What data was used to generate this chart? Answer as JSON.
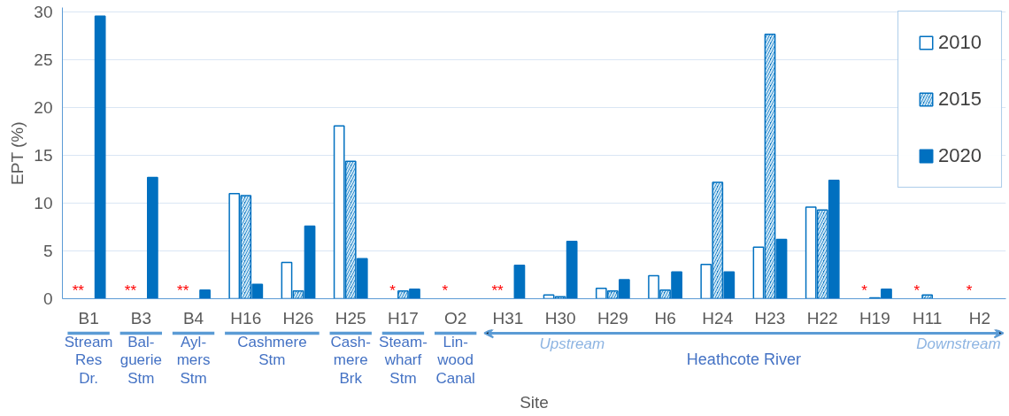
{
  "chart_data": {
    "type": "bar",
    "xlabel": "Site",
    "ylabel": "EPT (%)",
    "categories": [
      "B1",
      "B3",
      "B4",
      "H16",
      "H26",
      "H25",
      "H17",
      "O2",
      "H31",
      "H30",
      "H29",
      "H6",
      "H24",
      "H23",
      "H22",
      "H19",
      "H11",
      "H2"
    ],
    "series": [
      {
        "name": "2010",
        "color": "#0070c0",
        "values": [
          null,
          null,
          null,
          11.0,
          3.8,
          18.1,
          null,
          null,
          null,
          0.4,
          1.1,
          2.4,
          3.6,
          5.4,
          9.6,
          null,
          null,
          null
        ]
      },
      {
        "name": "2015",
        "color": "#0070c0",
        "values": [
          null,
          null,
          null,
          10.8,
          0.8,
          14.4,
          0.8,
          null,
          null,
          0.2,
          0.8,
          0.9,
          12.2,
          27.7,
          9.3,
          0.1,
          0.4,
          null
        ]
      },
      {
        "name": "2020",
        "color": "#0070c0",
        "values": [
          29.6,
          12.7,
          0.9,
          1.5,
          7.6,
          4.2,
          1.0,
          null,
          3.5,
          6.0,
          2.0,
          2.8,
          2.8,
          6.2,
          12.4,
          1.0,
          null,
          null
        ]
      }
    ],
    "ylim": [
      0,
      30.5
    ],
    "yticks": [
      0,
      5,
      10,
      15,
      20,
      25,
      30
    ],
    "grid": "y",
    "legend": "top right",
    "annotations": [
      "Stream\nRes\nDr.",
      "Bal-\nguerie\nStm",
      "Ayl-\nmers\nStm",
      "Cashmere\nStm",
      "Cash-\nmere\nBrk",
      "Steam-\nwharf\nStm",
      "Lin-\nwood\nCanal",
      "Heathcote River",
      "Upstream",
      "Downstream",
      "**",
      "**",
      "**",
      "*",
      "*",
      "**",
      "*",
      "*",
      "*"
    ]
  }
}
